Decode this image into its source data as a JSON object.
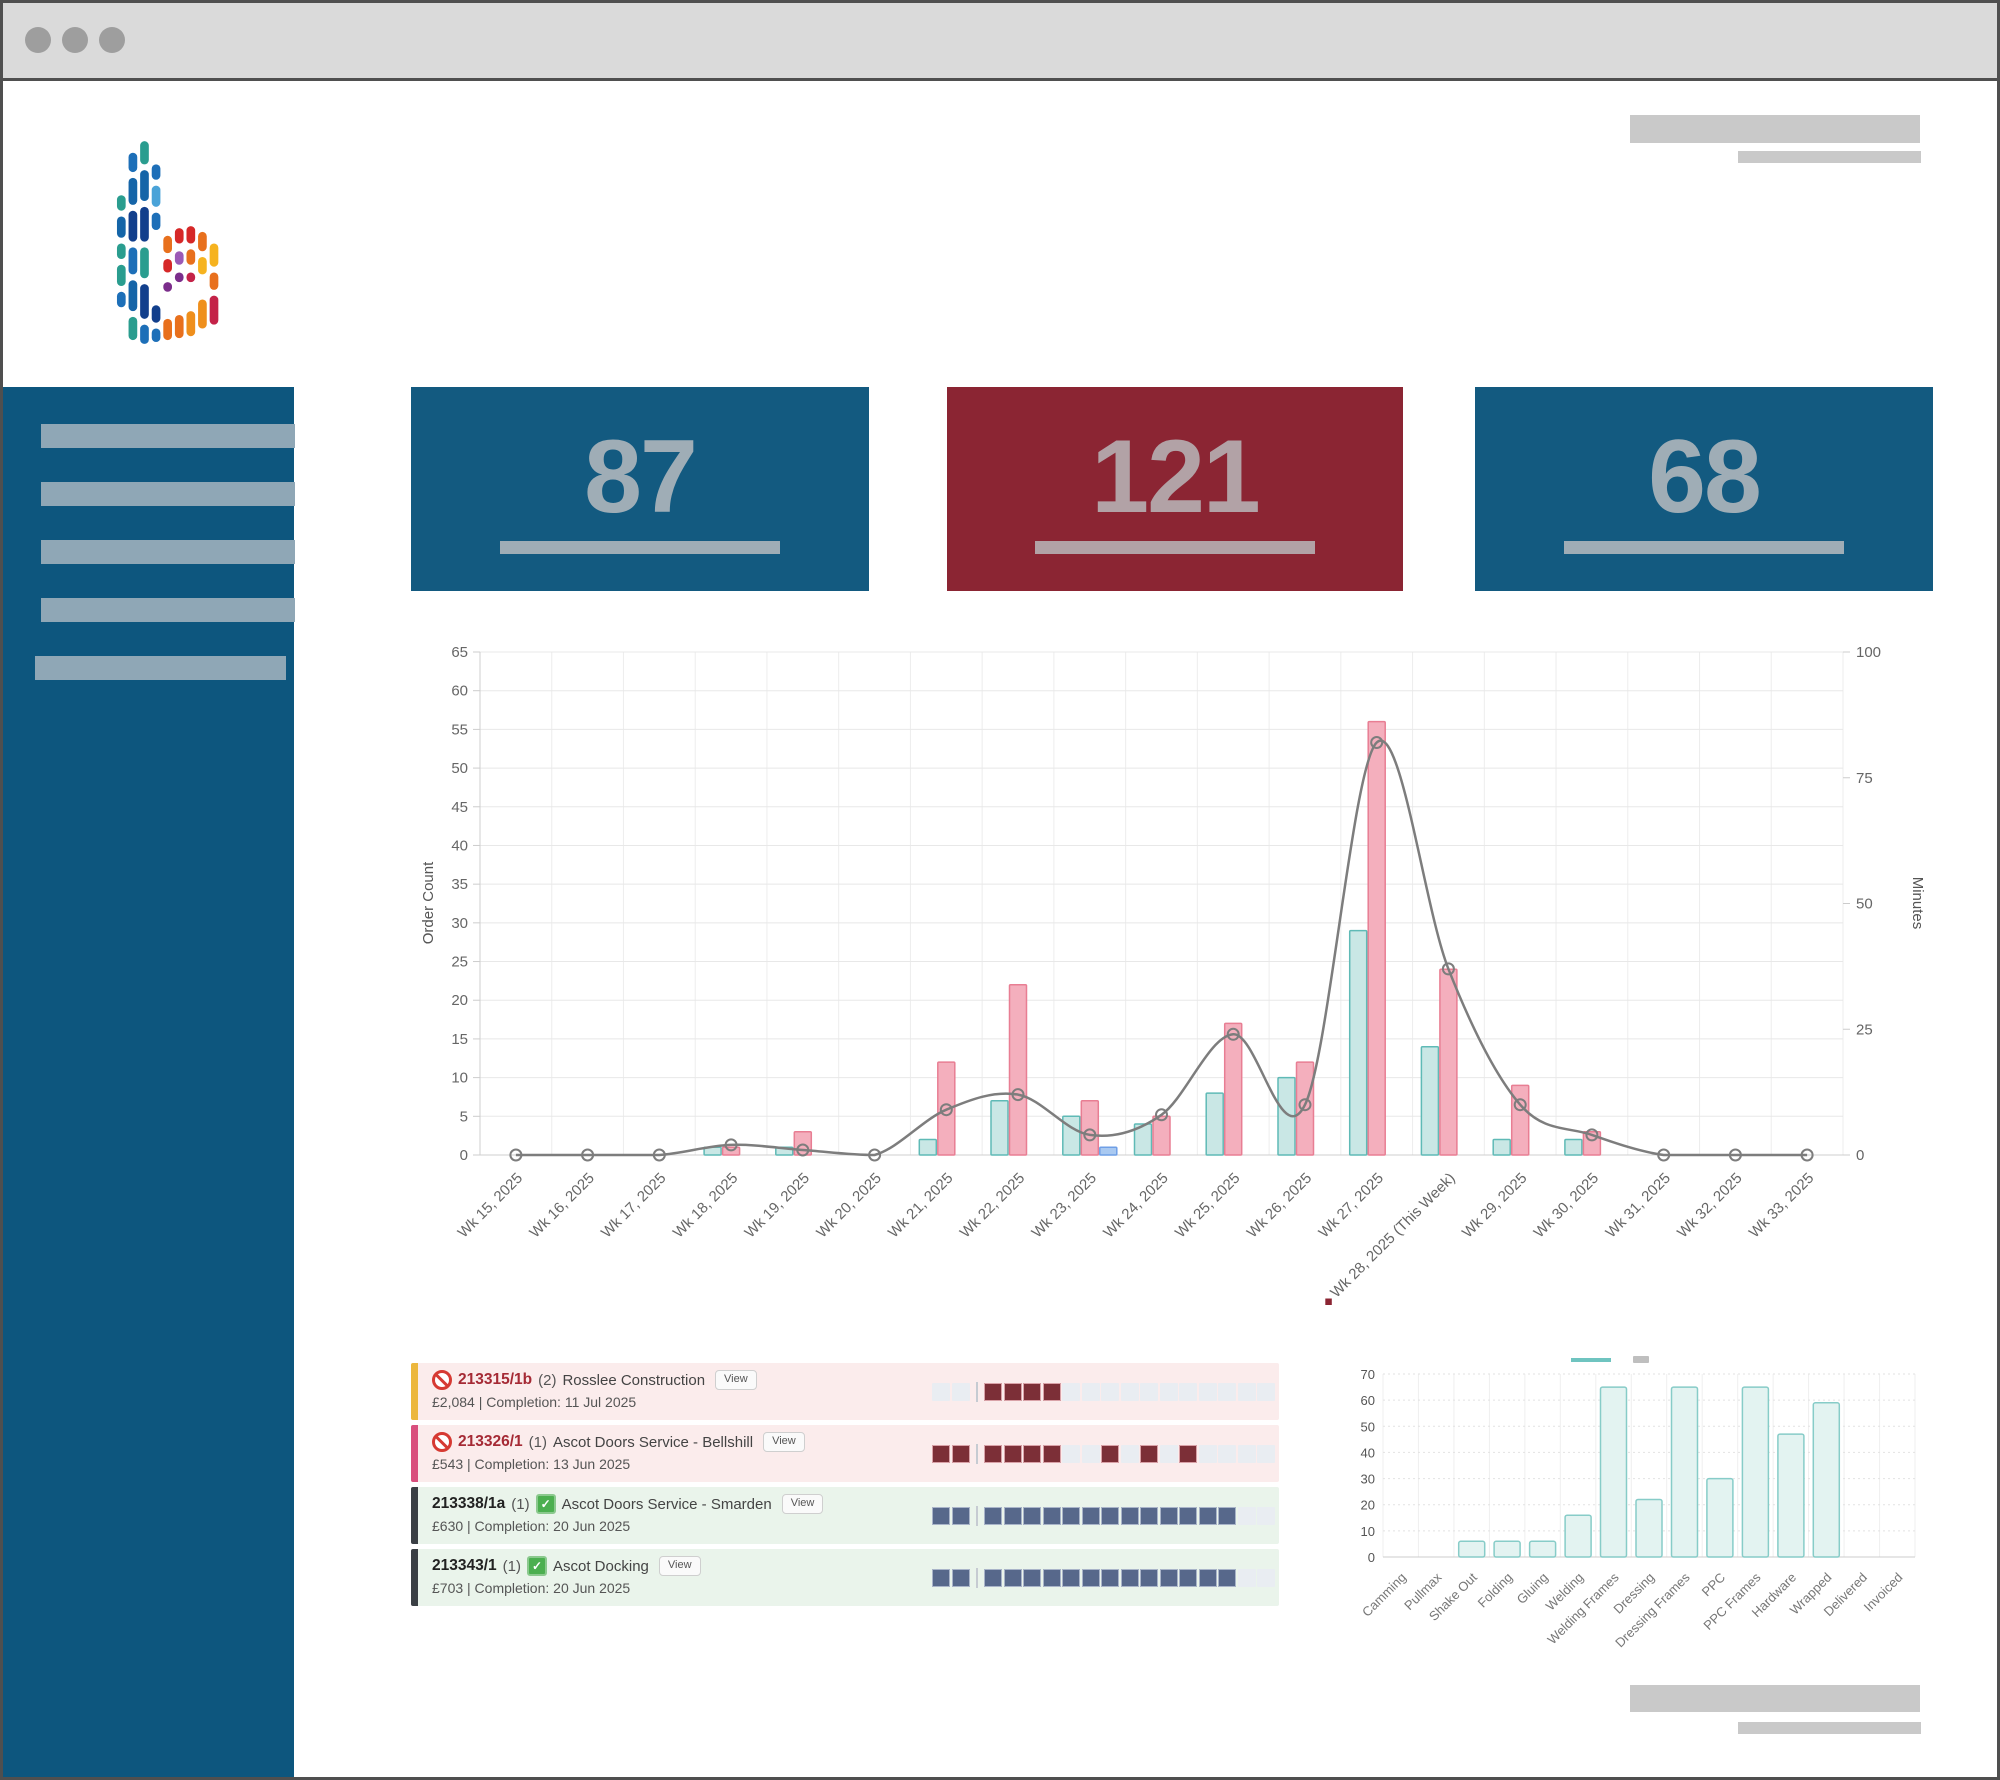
{
  "kpi_cards": [
    {
      "value": "87",
      "bg": "#135a80",
      "fg": "#9fadb6"
    },
    {
      "value": "121",
      "bg": "#8b2533",
      "fg": "#b2a2a6"
    },
    {
      "value": "68",
      "bg": "#135a80",
      "fg": "#9fadb6"
    }
  ],
  "sidebar": {
    "bg": "#0d567e",
    "nav_placeholder_count": 5
  },
  "chart_data": [
    {
      "id": "weekly-orders",
      "type": "bar+line",
      "categories": [
        "Wk 15, 2025",
        "Wk 16, 2025",
        "Wk 17, 2025",
        "Wk 18, 2025",
        "Wk 19, 2025",
        "Wk 20, 2025",
        "Wk 21, 2025",
        "Wk 22, 2025",
        "Wk 23, 2025",
        "Wk 24, 2025",
        "Wk 25, 2025",
        "Wk 26, 2025",
        "Wk 27, 2025",
        "Wk 28, 2025 (This Week)",
        "Wk 29, 2025",
        "Wk 30, 2025",
        "Wk 31, 2025",
        "Wk 32, 2025",
        "Wk 33, 2025"
      ],
      "this_week_index": 13,
      "series": [
        {
          "name": "orders-bars-teal",
          "type": "bar",
          "axis": "left",
          "values": [
            0,
            0,
            0,
            1,
            1,
            0,
            2,
            7,
            5,
            4,
            8,
            10,
            29,
            14,
            2,
            2,
            0,
            0,
            0
          ],
          "fill": "#c9e7e5",
          "stroke": "#5fbab6"
        },
        {
          "name": "orders-bars-pink",
          "type": "bar",
          "axis": "left",
          "values": [
            0,
            0,
            0,
            1,
            3,
            0,
            12,
            22,
            7,
            5,
            17,
            12,
            56,
            24,
            9,
            3,
            0,
            0,
            0
          ],
          "fill": "#f4afbd",
          "stroke": "#e87e93"
        },
        {
          "name": "orders-bars-blue",
          "type": "bar",
          "axis": "left",
          "values": [
            0,
            0,
            0,
            0,
            0,
            0,
            0,
            0,
            1,
            0,
            0,
            0,
            0,
            0,
            0,
            0,
            0,
            0,
            0
          ],
          "fill": "#a9c9f1",
          "stroke": "#6f9fe6"
        },
        {
          "name": "minutes-line",
          "type": "line",
          "axis": "right",
          "values": [
            0,
            0,
            0,
            2,
            1,
            0,
            9,
            12,
            4,
            8,
            24,
            10,
            82,
            37,
            10,
            4,
            0,
            0,
            0
          ],
          "stroke": "#7d7d7d"
        }
      ],
      "left_axis": {
        "title": "Order Count",
        "min": 0,
        "max": 65,
        "step": 5
      },
      "right_axis": {
        "title": "Minutes",
        "min": 0,
        "max": 100,
        "step": 25
      },
      "grid": true,
      "legend_position": "none",
      "this_week_marker_color": "#8b2533"
    },
    {
      "id": "process-stages",
      "type": "bar",
      "categories": [
        "Camming",
        "Pullmax",
        "Shake Out",
        "Folding",
        "Gluing",
        "Welding",
        "Welding Frames",
        "Dressing",
        "Dressing Frames",
        "PPC",
        "PPC Frames",
        "Hardware",
        "Wrapped",
        "Delivered",
        "Invoiced"
      ],
      "values": [
        0,
        0,
        6,
        6,
        6,
        16,
        65,
        22,
        65,
        30,
        65,
        47,
        59,
        0,
        0
      ],
      "title": "",
      "xlabel": "",
      "ylabel": "",
      "ylim": [
        0,
        70
      ],
      "step": 10,
      "grid": true,
      "fill": "#e3f3f1",
      "stroke": "#87ccc8",
      "legend": {
        "swatch_color": "#6fc4c0",
        "position": "top"
      }
    }
  ],
  "orders": {
    "rows": [
      {
        "id": "213315/1b",
        "qty": "(2)",
        "customer": "Rosslee Construction",
        "status": "blocked",
        "view_label": "View",
        "detail": "£2,084 | Completion: 11 Jul 2025",
        "bg": "#fbecec",
        "accent": "#ecb73d",
        "id_color": "#a52a35",
        "cell_color": "#7c2f37",
        "cell_border": "#d9a2a8",
        "pre": [
          0,
          0
        ],
        "cells": [
          1,
          1,
          1,
          1,
          0,
          0,
          0,
          0,
          0,
          0,
          0,
          0,
          0,
          0,
          0
        ]
      },
      {
        "id": "213326/1",
        "qty": "(1)",
        "customer": "Ascot Doors Service - Bellshill",
        "status": "blocked",
        "view_label": "View",
        "detail": "£543 | Completion: 13 Jun 2025",
        "bg": "#fbecec",
        "accent": "#d94f7d",
        "id_color": "#a52a35",
        "cell_color": "#7c2f37",
        "cell_border": "#d9a2a8",
        "pre": [
          1,
          1
        ],
        "cells": [
          1,
          1,
          1,
          1,
          0,
          0,
          1,
          0,
          1,
          0,
          1,
          0,
          0,
          0,
          0
        ]
      },
      {
        "id": "213338/1a",
        "qty": "(1)",
        "customer": "Ascot Doors Service - Smarden",
        "status": "done",
        "view_label": "View",
        "detail": "£630 | Completion: 20 Jun 2025",
        "bg": "#eaf4eb",
        "accent": "#3a3f44",
        "id_color": "#222222",
        "cell_color": "#57688b",
        "cell_border": "#a9b4c9",
        "pre": [
          1,
          1
        ],
        "cells": [
          1,
          1,
          1,
          1,
          1,
          1,
          1,
          1,
          1,
          1,
          1,
          1,
          1,
          0,
          0
        ]
      },
      {
        "id": "213343/1",
        "qty": "(1)",
        "customer": "Ascot Docking",
        "status": "done",
        "view_label": "View",
        "detail": "£703 | Completion: 20 Jun 2025",
        "bg": "#eaf4eb",
        "accent": "#3a3f44",
        "id_color": "#222222",
        "cell_color": "#57688b",
        "cell_border": "#a9b4c9",
        "pre": [
          1,
          1
        ],
        "cells": [
          1,
          1,
          1,
          1,
          1,
          1,
          1,
          1,
          1,
          1,
          1,
          1,
          1,
          0,
          0
        ]
      }
    ],
    "empty_cell_color": "#e9edf2"
  }
}
